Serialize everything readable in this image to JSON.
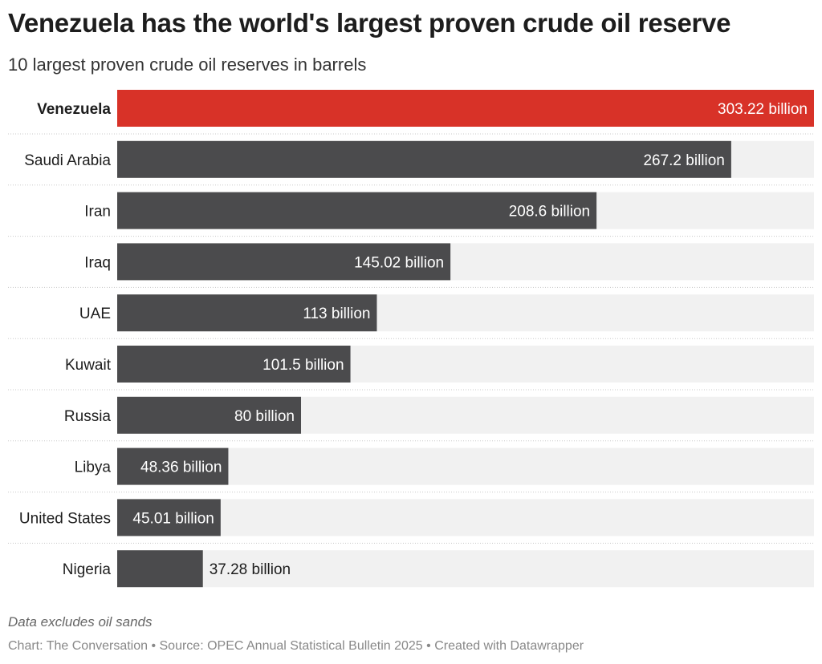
{
  "title": "Venezuela has the world's largest proven crude oil reserve",
  "subtitle": "10 largest proven crude oil reserves in barrels",
  "notes": "Data excludes oil sands",
  "footer": "Chart: The Conversation • Source: OPEC Annual Statistical Bulletin 2025 • Created with Datawrapper",
  "colors": {
    "highlight": "#d83228",
    "bar": "#4b4b4d",
    "background_bar": "#f1f1f1"
  },
  "chart_data": {
    "type": "bar",
    "orientation": "horizontal",
    "unit": "billion barrels",
    "categories": [
      "Venezuela",
      "Saudi Arabia",
      "Iran",
      "Iraq",
      "UAE",
      "Kuwait",
      "Russia",
      "Libya",
      "United States",
      "Nigeria"
    ],
    "values": [
      303.22,
      267.2,
      208.6,
      145.02,
      113,
      101.5,
      80,
      48.36,
      45.01,
      37.28
    ],
    "labels": [
      "303.22 billion",
      "267.2 billion",
      "208.6 billion",
      "145.02 billion",
      "113 billion",
      "101.5 billion",
      "80 billion",
      "48.36 billion",
      "45.01 billion",
      "37.28 billion"
    ],
    "highlighted": [
      "Venezuela"
    ],
    "xlim": [
      0,
      303.22
    ],
    "grid": false
  }
}
